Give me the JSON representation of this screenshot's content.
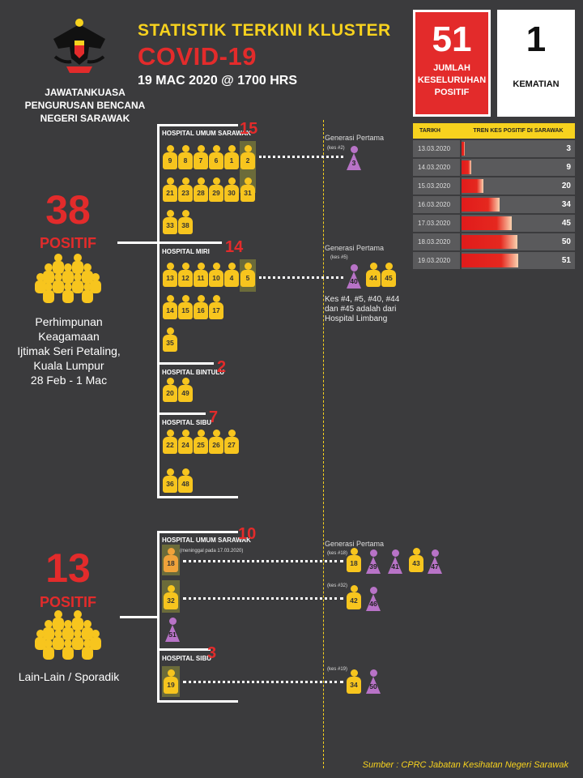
{
  "header": {
    "title": "STATISTIK TERKINI KLUSTER",
    "subtitle": "COVID-19",
    "date": "19 MAC 2020 @ 1700 HRS",
    "agency": [
      "JAWATANKUASA",
      "PENGURUSAN BENCANA",
      "NEGERI SARAWAK"
    ]
  },
  "summary": {
    "total": "51",
    "total_label": [
      "JUMLAH",
      "KESELURUHAN",
      "POSITIF"
    ],
    "deaths": "1",
    "deaths_label": "KEMATIAN"
  },
  "trend": {
    "col_date": "TARIKH",
    "col_trend": "TREN KES POSITIF DI SARAWAK",
    "max": 51,
    "rows": [
      {
        "date": "13.03.2020",
        "value": 3
      },
      {
        "date": "14.03.2020",
        "value": 9
      },
      {
        "date": "15.03.2020",
        "value": 20
      },
      {
        "date": "16.03.2020",
        "value": 34
      },
      {
        "date": "17.03.2020",
        "value": 45
      },
      {
        "date": "18.03.2020",
        "value": 50
      },
      {
        "date": "19.03.2020",
        "value": 51
      }
    ]
  },
  "cluster1": {
    "count": "38",
    "label": "POSITIF",
    "description": [
      "Perhimpunan",
      "Keagamaan",
      "Ijtimak Seri Petaling,",
      "Kuala Lumpur",
      "28 Feb - 1 Mac"
    ],
    "hospitals": [
      {
        "name": "HOSPITAL UMUM SARAWAK",
        "count": "15"
      },
      {
        "name": "HOSPITAL MIRI",
        "count": "14"
      },
      {
        "name": "HOSPITAL BINTULU",
        "count": "2"
      },
      {
        "name": "HOSPITAL SIBU",
        "count": "7"
      }
    ]
  },
  "cluster2": {
    "count": "13",
    "label": "POSITIF",
    "description": "Lain-Lain / Sporadik",
    "hospitals": [
      {
        "name": "HOSPITAL UMUM SARAWAK",
        "count": "10"
      },
      {
        "name": "HOSPITAL SIBU",
        "count": "3"
      }
    ],
    "death_note": "(meninggal pada 17.03.2020)"
  },
  "generations": {
    "gen1": "Generasi Pertama",
    "kes2": "(kes #2)",
    "gen2": "Generasi Pertama",
    "kes5": "(kes #5)",
    "note": [
      "Kes #4, #5, #40, #44",
      "dan #45 adalah dari",
      "Hospital Limbang"
    ],
    "gen3": "Generasi Pertama",
    "kes18": "(kes #18)",
    "kes32": "(kes #32)",
    "kes19": "(kes #19)"
  },
  "source": "Sumber : CPRC Jabatan Kesihatan Negeri Sarawak",
  "colors": {
    "yellow": "#f7c51e",
    "red": "#e32b2b",
    "purple": "#b873c7",
    "orange": "#f0a23a"
  }
}
